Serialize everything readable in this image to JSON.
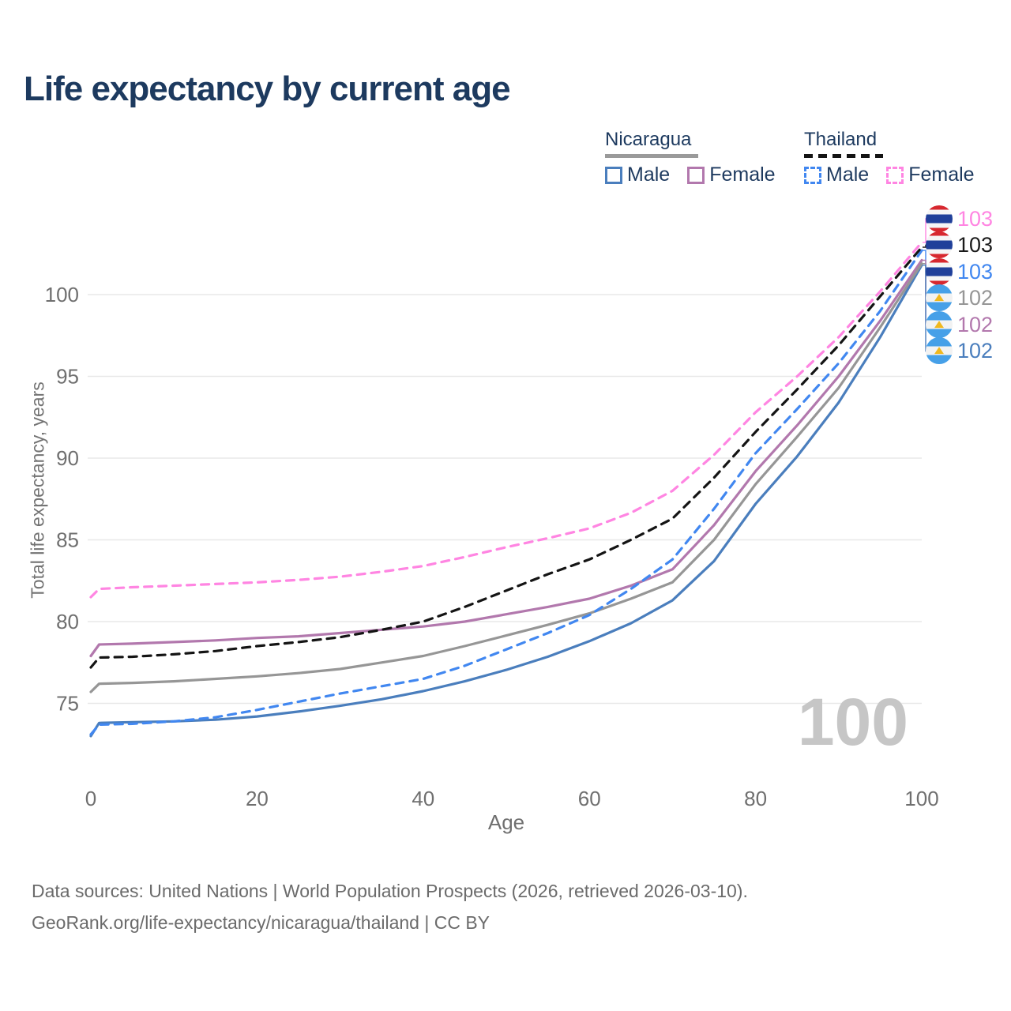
{
  "title": "Life expectancy by current age",
  "watermark": "100",
  "legend": {
    "groups": [
      {
        "name": "Nicaragua",
        "style": "solid",
        "underline_color": "#9a9a9a",
        "items": [
          {
            "label": "Male",
            "color": "#4a7ebd"
          },
          {
            "label": "Female",
            "color": "#b278ad"
          }
        ]
      },
      {
        "name": "Thailand",
        "style": "dashed",
        "underline_color": "#141414",
        "items": [
          {
            "label": "Male",
            "color": "#4187f0"
          },
          {
            "label": "Female",
            "color": "#ff85e2"
          }
        ]
      }
    ]
  },
  "end_labels": [
    {
      "value": "103",
      "series": "th_female",
      "color": "#ff85e2",
      "flag": "thailand"
    },
    {
      "value": "103",
      "series": "th_total",
      "color": "#1a1a1a",
      "flag": "thailand"
    },
    {
      "value": "103",
      "series": "th_male",
      "color": "#4187f0",
      "flag": "thailand"
    },
    {
      "value": "102",
      "series": "ni_total",
      "color": "#969696",
      "flag": "nicaragua"
    },
    {
      "value": "102",
      "series": "ni_female",
      "color": "#b278ad",
      "flag": "nicaragua"
    },
    {
      "value": "102",
      "series": "ni_male",
      "color": "#4a7ebd",
      "flag": "nicaragua"
    }
  ],
  "footer": {
    "line1": "Data sources: United Nations | World Population Prospects (2026, retrieved 2026-03-10).",
    "line2": "GeoRank.org/life-expectancy/nicaragua/thailand | CC BY"
  },
  "chart_data": {
    "type": "line",
    "title": "Life expectancy by current age",
    "xlabel": "Age",
    "ylabel": "Total life expectancy, years",
    "x_ticks": [
      0,
      20,
      40,
      60,
      80,
      100
    ],
    "y_ticks": [
      75,
      80,
      85,
      90,
      95,
      100
    ],
    "xlim": [
      0,
      100
    ],
    "ylim": [
      71.5,
      105.5
    ],
    "grid": "horizontal",
    "legend_position": "top-right",
    "ages": [
      0,
      1,
      5,
      10,
      15,
      20,
      25,
      30,
      35,
      40,
      45,
      50,
      55,
      60,
      65,
      70,
      75,
      80,
      85,
      90,
      95,
      100
    ],
    "series": [
      {
        "key": "th_female",
        "name": "Thailand Female",
        "color": "#ff85e2",
        "dash": true,
        "end_label": "103",
        "values": [
          81.5,
          82.0,
          82.1,
          82.2,
          82.3,
          82.4,
          82.55,
          82.75,
          83.05,
          83.4,
          83.95,
          84.55,
          85.1,
          85.7,
          86.65,
          88.0,
          90.2,
          92.8,
          95.0,
          97.4,
          100.2,
          103.2
        ]
      },
      {
        "key": "th_total",
        "name": "Thailand",
        "color": "#141414",
        "dash": true,
        "end_label": "103",
        "values": [
          77.2,
          77.8,
          77.85,
          78.0,
          78.2,
          78.5,
          78.75,
          79.05,
          79.5,
          80.0,
          80.9,
          81.9,
          82.9,
          83.8,
          85.0,
          86.3,
          88.8,
          91.6,
          94.2,
          96.9,
          99.9,
          102.9
        ]
      },
      {
        "key": "th_male",
        "name": "Thailand Male",
        "color": "#4187f0",
        "dash": true,
        "end_label": "103",
        "values": [
          73.1,
          73.7,
          73.75,
          73.9,
          74.15,
          74.6,
          75.1,
          75.6,
          76.05,
          76.5,
          77.3,
          78.3,
          79.3,
          80.4,
          82.0,
          83.8,
          86.9,
          90.3,
          93.0,
          95.8,
          99.0,
          102.7
        ]
      },
      {
        "key": "ni_total",
        "name": "Nicaragua",
        "color": "#969696",
        "dash": false,
        "end_label": "102",
        "values": [
          75.7,
          76.2,
          76.25,
          76.35,
          76.5,
          76.65,
          76.85,
          77.1,
          77.5,
          77.9,
          78.5,
          79.15,
          79.8,
          80.5,
          81.4,
          82.4,
          85.0,
          88.4,
          91.3,
          94.3,
          98.0,
          101.9
        ]
      },
      {
        "key": "ni_female",
        "name": "Nicaragua Female",
        "color": "#b278ad",
        "dash": false,
        "end_label": "102",
        "values": [
          77.9,
          78.6,
          78.65,
          78.75,
          78.85,
          79.0,
          79.1,
          79.3,
          79.5,
          79.7,
          80.0,
          80.45,
          80.9,
          81.4,
          82.2,
          83.2,
          85.9,
          89.2,
          92.0,
          95.0,
          98.4,
          102.1
        ]
      },
      {
        "key": "ni_male",
        "name": "Nicaragua Male",
        "color": "#4a7ebd",
        "dash": false,
        "end_label": "102",
        "values": [
          73.0,
          73.8,
          73.85,
          73.9,
          74.0,
          74.2,
          74.5,
          74.85,
          75.25,
          75.75,
          76.35,
          77.05,
          77.85,
          78.8,
          79.9,
          81.3,
          83.7,
          87.2,
          90.1,
          93.4,
          97.4,
          101.8
        ]
      }
    ]
  }
}
